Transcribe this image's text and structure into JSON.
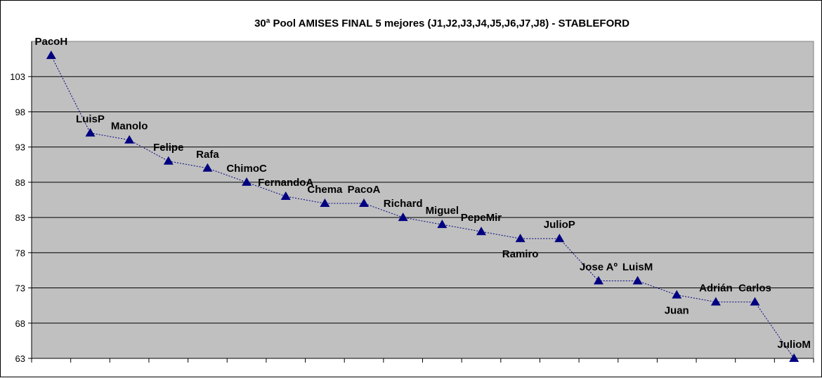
{
  "chart_data": {
    "type": "line",
    "title": "30ª Pool AMISES FINAL 5 mejores (J1,J2,J3,J4,J5,J6,J7,J8)  - STABLEFORD",
    "xlabel": "",
    "ylabel": "",
    "ylim": [
      63,
      108
    ],
    "yticks": [
      63,
      68,
      73,
      78,
      83,
      88,
      93,
      98,
      103
    ],
    "grid": true,
    "legend": "none",
    "colors": {
      "plot_bg": "#C0C0C0",
      "series": "#000080",
      "gridline": "#000000"
    },
    "categories": [
      "PacoH",
      "LuisP",
      "Manolo",
      "Felipe",
      "Rafa",
      "ChimoC",
      "FernandoA",
      "Chema",
      "PacoA",
      "Richard",
      "Miguel",
      "PepeMir",
      "Ramiro",
      "JulioP",
      "Jose Aº",
      "LuisM",
      "Juan",
      "Adrián",
      "Carlos",
      "JulioM"
    ],
    "values": [
      106,
      95,
      94,
      91,
      90,
      88,
      86,
      85,
      85,
      83,
      82,
      81,
      80,
      80,
      74,
      74,
      72,
      71,
      71,
      63
    ],
    "label_position": [
      "above",
      "above",
      "above",
      "above",
      "above",
      "above",
      "above",
      "above",
      "above",
      "above",
      "above",
      "above",
      "below",
      "above",
      "above",
      "above",
      "below",
      "above",
      "above",
      "above"
    ]
  }
}
